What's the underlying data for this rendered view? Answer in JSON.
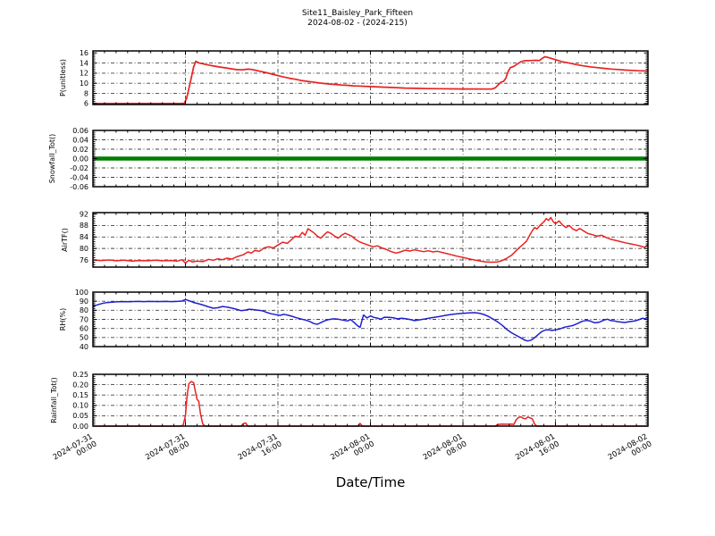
{
  "title": {
    "line1": "Site11_Baisley_Park_Fifteen",
    "line2": "2024-08-02 - (2024-215)"
  },
  "xlabel": "Date/Time",
  "style": {
    "line_red": "#e82222",
    "line_blue": "#1f1fd0",
    "line_green": "#007f00",
    "grid_color": "#444444",
    "background": "#ffffff"
  },
  "xaxis": {
    "min": 0,
    "max": 48,
    "major_step": 8,
    "minor_step": 1,
    "tick_labels": [
      [
        "2024-07-31",
        "00:00"
      ],
      [
        "2024-07-31",
        "08:00"
      ],
      [
        "2024-07-31",
        "16:00"
      ],
      [
        "2024-08-01",
        "00:00"
      ],
      [
        "2024-08-01",
        "08:00"
      ],
      [
        "2024-08-01",
        "16:00"
      ],
      [
        "2024-08-02",
        "00:00"
      ]
    ]
  },
  "chart_data": [
    {
      "type": "line",
      "ylabel": "P(unitless)",
      "color": "#e82222",
      "linewidth": 1.7,
      "ylim": [
        5.8,
        16.4
      ],
      "yticks": [
        16,
        14,
        12,
        10,
        8,
        6
      ],
      "ytick_labels": [
        "16",
        "14",
        "12",
        "10",
        "8",
        "6"
      ],
      "y_minor_step": 0.4,
      "x": [
        0,
        2,
        4,
        6,
        7.5,
        7.9,
        8.1,
        8.4,
        8.7,
        8.9,
        9.2,
        9.6,
        10,
        10.5,
        11,
        11.5,
        12,
        12.4,
        12.8,
        13.1,
        13.4,
        13.7,
        14,
        14.5,
        15,
        15.5,
        16,
        16.5,
        17,
        17.5,
        18,
        18.5,
        19,
        19.5,
        20,
        20.5,
        21,
        21.5,
        22,
        22.5,
        23,
        23.5,
        24,
        25,
        26,
        27,
        28,
        29,
        30,
        31,
        32,
        33,
        34,
        34.5,
        34.8,
        35.1,
        35.3,
        35.5,
        35.7,
        35.9,
        36.1,
        36.4,
        36.7,
        37,
        37.3,
        37.8,
        38.3,
        38.6,
        38.9,
        39.1,
        39.4,
        39.8,
        40.1,
        40.6,
        41.2,
        41.8,
        42.4,
        43,
        43.6,
        44.2,
        44.8,
        45.4,
        46,
        46.6,
        47.2,
        48
      ],
      "y": [
        6,
        6,
        6,
        6,
        6,
        6.05,
        7,
        10,
        13.2,
        14.35,
        14.0,
        13.8,
        13.6,
        13.4,
        13.2,
        13.05,
        12.85,
        12.7,
        12.65,
        12.7,
        12.8,
        12.75,
        12.6,
        12.35,
        12.1,
        11.8,
        11.5,
        11.25,
        11.0,
        10.8,
        10.55,
        10.4,
        10.25,
        10.1,
        9.95,
        9.85,
        9.75,
        9.65,
        9.6,
        9.5,
        9.45,
        9.4,
        9.35,
        9.25,
        9.15,
        9.05,
        9.0,
        8.95,
        8.92,
        8.9,
        8.88,
        8.87,
        8.86,
        8.85,
        9.1,
        9.8,
        10.25,
        10.35,
        11.0,
        12.3,
        13.1,
        13.35,
        13.8,
        14.25,
        14.45,
        14.5,
        14.55,
        14.5,
        15.0,
        15.25,
        15.1,
        14.8,
        14.6,
        14.25,
        14.0,
        13.7,
        13.45,
        13.25,
        13.1,
        12.95,
        12.82,
        12.72,
        12.62,
        12.55,
        12.48,
        12.42
      ]
    },
    {
      "type": "line",
      "ylabel": "Snowfall_Tot()",
      "color": "#007f00",
      "linewidth": 4.5,
      "ylim": [
        -0.06,
        0.06
      ],
      "yticks": [
        0.06,
        0.04,
        0.02,
        0,
        -0.02,
        -0.04,
        -0.06
      ],
      "ytick_labels": [
        "0.06",
        "0.04",
        "0.02",
        "0.00",
        "-0.02",
        "-0.04",
        "-0.06"
      ],
      "y_minor_step": 0.004,
      "x": [
        0,
        48
      ],
      "y": [
        0,
        0
      ]
    },
    {
      "type": "line",
      "ylabel": "AirTF()",
      "color": "#e82222",
      "linewidth": 1.5,
      "ylim": [
        73.5,
        92.5
      ],
      "yticks": [
        92,
        88,
        84,
        80,
        76
      ],
      "ytick_labels": [
        "92",
        "88",
        "84",
        "80",
        "76"
      ],
      "y_minor_step": 0.8,
      "x": [
        0,
        0.7,
        1.4,
        2,
        2.7,
        3.4,
        4,
        4.7,
        5.4,
        6,
        6.7,
        7.3,
        7.7,
        8,
        8.3,
        8.6,
        9,
        9.5,
        10,
        10.4,
        10.8,
        11.2,
        11.6,
        12,
        12.5,
        13,
        13.4,
        13.7,
        14,
        14.4,
        14.8,
        15.2,
        15.6,
        16,
        16.4,
        16.8,
        17.2,
        17.5,
        17.8,
        18.1,
        18.35,
        18.6,
        18.8,
        19.1,
        19.4,
        19.7,
        20,
        20.3,
        20.6,
        20.9,
        21.2,
        21.5,
        21.8,
        22.1,
        22.4,
        22.7,
        23,
        23.4,
        23.8,
        24.2,
        24.6,
        25,
        25.4,
        25.8,
        26.2,
        26.6,
        27,
        27.4,
        27.8,
        28.2,
        28.6,
        29,
        29.4,
        29.8,
        30.2,
        30.6,
        31,
        31.5,
        32,
        32.5,
        33,
        33.5,
        34,
        34.5,
        35,
        35.4,
        35.8,
        36.2,
        36.6,
        36.9,
        37.2,
        37.5,
        37.8,
        38,
        38.2,
        38.4,
        38.7,
        39,
        39.2,
        39.4,
        39.6,
        39.8,
        40,
        40.3,
        40.6,
        40.9,
        41.2,
        41.5,
        41.8,
        42.1,
        42.4,
        42.8,
        43.2,
        43.6,
        44,
        44.4,
        44.8,
        45.2,
        45.6,
        46,
        46.5,
        47,
        47.4,
        47.7,
        48
      ],
      "y": [
        76,
        75.8,
        76,
        75.7,
        75.9,
        75.6,
        75.8,
        75.7,
        75.9,
        75.7,
        75.8,
        75.6,
        76.1,
        74.9,
        75.9,
        75.3,
        75.6,
        75.4,
        76.2,
        75.9,
        76.4,
        76.1,
        76.6,
        76.3,
        77.2,
        77.8,
        78.8,
        78.4,
        79.3,
        79.0,
        80.2,
        80.6,
        80.2,
        81.2,
        82.2,
        81.8,
        83.2,
        84.3,
        84.0,
        85.6,
        84.6,
        86.9,
        86.3,
        85.5,
        84.3,
        83.6,
        84.8,
        85.8,
        85.2,
        84.3,
        83.6,
        84.6,
        85.3,
        84.8,
        84.2,
        83.2,
        82.4,
        81.8,
        81.2,
        80.6,
        80.9,
        80.2,
        79.6,
        78.9,
        78.4,
        78.8,
        79.4,
        79.1,
        79.5,
        79.2,
        78.9,
        79.2,
        78.8,
        79.0,
        78.6,
        78.2,
        77.8,
        77.3,
        76.9,
        76.4,
        76.0,
        75.6,
        75.3,
        75.2,
        75.3,
        75.8,
        76.6,
        77.6,
        79.2,
        80.4,
        81.4,
        82.6,
        84.8,
        86.2,
        87.3,
        86.8,
        88.2,
        89.3,
        90.4,
        89.8,
        90.8,
        89.4,
        88.6,
        89.6,
        88.2,
        87.3,
        88.0,
        86.8,
        86.2,
        87.0,
        86.2,
        85.2,
        84.8,
        84.3,
        84.6,
        83.8,
        83.2,
        82.8,
        82.4,
        82.0,
        81.6,
        81.2,
        80.8,
        80.4,
        81.3
      ]
    },
    {
      "type": "line",
      "ylabel": "RH(%)",
      "color": "#1f1fd0",
      "linewidth": 1.5,
      "ylim": [
        40,
        100
      ],
      "yticks": [
        100,
        90,
        80,
        70,
        60,
        50,
        40
      ],
      "ytick_labels": [
        "100",
        "90",
        "80",
        "70",
        "60",
        "50",
        "40"
      ],
      "y_minor_step": 2,
      "x": [
        0,
        0.4,
        0.8,
        1.2,
        2,
        2.6,
        3.2,
        3.8,
        4.4,
        5,
        5.6,
        6.2,
        6.8,
        7.3,
        7.7,
        8,
        8.3,
        8.7,
        9.1,
        9.5,
        10,
        10.4,
        10.8,
        11.2,
        11.6,
        12,
        12.4,
        12.8,
        13.2,
        13.5,
        13.8,
        14.2,
        14.6,
        15,
        15.4,
        15.8,
        16.2,
        16.5,
        16.8,
        17.2,
        17.6,
        18,
        18.4,
        18.8,
        19.1,
        19.4,
        19.7,
        20,
        20.4,
        20.8,
        21.2,
        21.6,
        22,
        22.3,
        22.6,
        22.9,
        23.1,
        23.4,
        23.7,
        24,
        24.3,
        24.6,
        24.9,
        25.2,
        25.6,
        26,
        26.3,
        26.7,
        27.1,
        27.5,
        27.8,
        28.2,
        28.6,
        29,
        29.5,
        30,
        30.5,
        31,
        31.5,
        32,
        32.5,
        33,
        33.4,
        33.8,
        34.2,
        34.6,
        35,
        35.4,
        35.8,
        36.2,
        36.6,
        37,
        37.3,
        37.6,
        37.9,
        38.2,
        38.5,
        38.8,
        39.1,
        39.4,
        39.7,
        40,
        40.4,
        40.8,
        41.2,
        41.5,
        41.9,
        42.3,
        42.7,
        43,
        43.4,
        43.8,
        44.2,
        44.5,
        44.8,
        45.1,
        45.4,
        45.7,
        46,
        46.3,
        46.6,
        46.9,
        47.2,
        47.5,
        47.8,
        48
      ],
      "y": [
        84.5,
        86,
        87.5,
        88.5,
        89.3,
        89.6,
        89.5,
        89.8,
        89.6,
        89.8,
        89.6,
        89.8,
        89.6,
        89.8,
        90.2,
        91.8,
        90.6,
        88.6,
        87.3,
        85.8,
        83.8,
        82.3,
        82.8,
        84.2,
        83.6,
        82.4,
        81.2,
        79.6,
        80.2,
        81.2,
        80.8,
        80.2,
        79.6,
        77.8,
        76.2,
        75.2,
        74.4,
        75.6,
        74.8,
        73.4,
        71.8,
        70.4,
        69.2,
        67.4,
        65.4,
        64.6,
        66.4,
        68.2,
        69.8,
        70.6,
        70.2,
        69.2,
        68.2,
        69.8,
        66.4,
        62.8,
        61.2,
        74.8,
        71.6,
        73.8,
        72.2,
        71.4,
        70.2,
        72.4,
        72.2,
        71.8,
        70.6,
        71.2,
        70.6,
        69.6,
        68.6,
        69.4,
        70.2,
        71.2,
        72.2,
        73.2,
        74.4,
        75.4,
        76.2,
        76.6,
        77.2,
        77.4,
        76.8,
        75.4,
        73.2,
        70.4,
        67.2,
        63.4,
        58.8,
        55.2,
        52.4,
        49.6,
        47.4,
        46.2,
        47.2,
        49.8,
        53.2,
        56.4,
        58.2,
        58.6,
        57.8,
        58.4,
        59.6,
        61.4,
        62.4,
        63.2,
        65.4,
        67.8,
        68.8,
        68.2,
        66.2,
        67.0,
        69.2,
        70.2,
        68.6,
        68.2,
        67.4,
        67.0,
        66.6,
        67.2,
        67.8,
        68.4,
        69.6,
        71.2,
        70.6,
        69.8
      ]
    },
    {
      "type": "line",
      "ylabel": "Rainfall_Tot()",
      "color": "#e82222",
      "linewidth": 1.5,
      "ylim": [
        0,
        0.25
      ],
      "yticks": [
        0.25,
        0.2,
        0.15,
        0.1,
        0.05,
        0
      ],
      "ytick_labels": [
        "0.25",
        "0.20",
        "0.15",
        "0.10",
        "0.05",
        "0.00"
      ],
      "y_minor_step": 0.01,
      "x": [
        0,
        7.6,
        7.8,
        8.0,
        8.15,
        8.3,
        8.5,
        8.7,
        8.85,
        9.0,
        9.15,
        9.3,
        9.5,
        9.7,
        12.8,
        13.0,
        13.2,
        13.4,
        22.9,
        23.1,
        23.3,
        34.8,
        35.0,
        35.4,
        35.8,
        36.2,
        36.4,
        36.6,
        36.8,
        37.0,
        37.2,
        37.4,
        37.6,
        37.8,
        38.0,
        38.2,
        38.4,
        48
      ],
      "y": [
        0,
        0,
        0.005,
        0.05,
        0.15,
        0.205,
        0.215,
        0.21,
        0.17,
        0.13,
        0.12,
        0.06,
        0.01,
        0,
        0,
        0.012,
        0.015,
        0,
        0,
        0.013,
        0,
        0,
        0.008,
        0.01,
        0.009,
        0.01,
        0.008,
        0.03,
        0.042,
        0.045,
        0.038,
        0.035,
        0.044,
        0.04,
        0.035,
        0.01,
        0,
        0
      ]
    }
  ]
}
